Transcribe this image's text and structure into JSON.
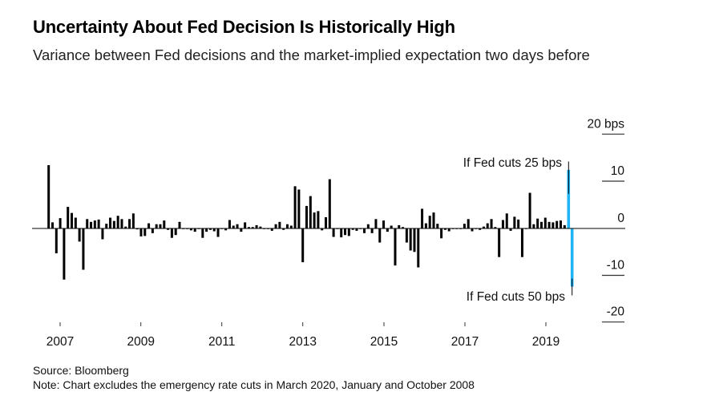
{
  "header": {
    "title": "Uncertainty About Fed Decision Is Historically High",
    "subtitle": "Variance between Fed decisions and the market-implied expectation two days before"
  },
  "footer": {
    "source": "Source: Bloomberg",
    "note": "Note: Chart excludes the emergency rate cuts in March 2020, January and October 2008"
  },
  "chart_data": {
    "type": "bar",
    "title": "Uncertainty About Fed Decision Is Historically High",
    "subtitle": "Variance between Fed decisions and the market-implied expectation two days before",
    "ylabel": "",
    "y_unit_label": "20 bps",
    "ylim": [
      -20,
      20
    ],
    "y_ticks": [
      20,
      10,
      0,
      -10,
      -20
    ],
    "y_tick_labels": [
      "20 bps",
      "10",
      "0",
      "-10",
      "-20"
    ],
    "y_axis_position": "right",
    "x_tick_labels": [
      "2007",
      "2009",
      "2011",
      "2013",
      "2015",
      "2017",
      "2019"
    ],
    "grid": false,
    "bar_color": "#000000",
    "highlight_color": "#1fb4f5",
    "values": [
      13.5,
      1.3,
      -5.3,
      2.2,
      -10.9,
      4.6,
      3.3,
      2.3,
      -2.8,
      -8.8,
      2,
      1.4,
      1.7,
      1.9,
      -2.3,
      1,
      2.3,
      1.6,
      2.7,
      2,
      0.4,
      2,
      3.2,
      -0.2,
      -1.7,
      -1.6,
      1.1,
      -1,
      0.9,
      0.9,
      1.7,
      -0.3,
      -2,
      -1.4,
      1.4,
      -0.1,
      -0.1,
      -0.4,
      -0.7,
      -0.1,
      -2,
      -0.7,
      -0.3,
      -0.6,
      -1.8,
      -0.1,
      -0.4,
      1.8,
      0.6,
      0.9,
      -0.7,
      1.3,
      0.3,
      0.3,
      0.7,
      0.4,
      -0.1,
      -0.1,
      -0.5,
      0.9,
      1.4,
      -0.3,
      0.9,
      0.6,
      9,
      8.3,
      -7.2,
      4.8,
      6.9,
      3.4,
      3.7,
      -0.4,
      2.4,
      10.5,
      -1.8,
      -0.1,
      -1.9,
      -1.4,
      -1.6,
      -0.3,
      -0.5,
      -0.1,
      -1,
      0.9,
      -1,
      2,
      -3,
      1.7,
      -0.7,
      0.6,
      -7.9,
      0.7,
      0.3,
      -3,
      -4.7,
      -5,
      -8.3,
      4.2,
      1.1,
      2.7,
      3.4,
      1,
      -2.1,
      -0.3,
      -0.6,
      0,
      0,
      0,
      1,
      2,
      -0.6,
      0,
      -0.3,
      0.4,
      1.1,
      2,
      0.3,
      -6.1,
      1.8,
      3.2,
      -0.5,
      2.5,
      1.9,
      -6.1,
      -0.1,
      7.6,
      0.9,
      2.1,
      1.4,
      2.3,
      1.4,
      1.3,
      1.6,
      1.7,
      0.7
    ],
    "scenarios": [
      {
        "label": "If Fed cuts 25 bps",
        "value": 12.5
      },
      {
        "label": "If Fed cuts 50 bps",
        "value": -12.4
      }
    ]
  }
}
